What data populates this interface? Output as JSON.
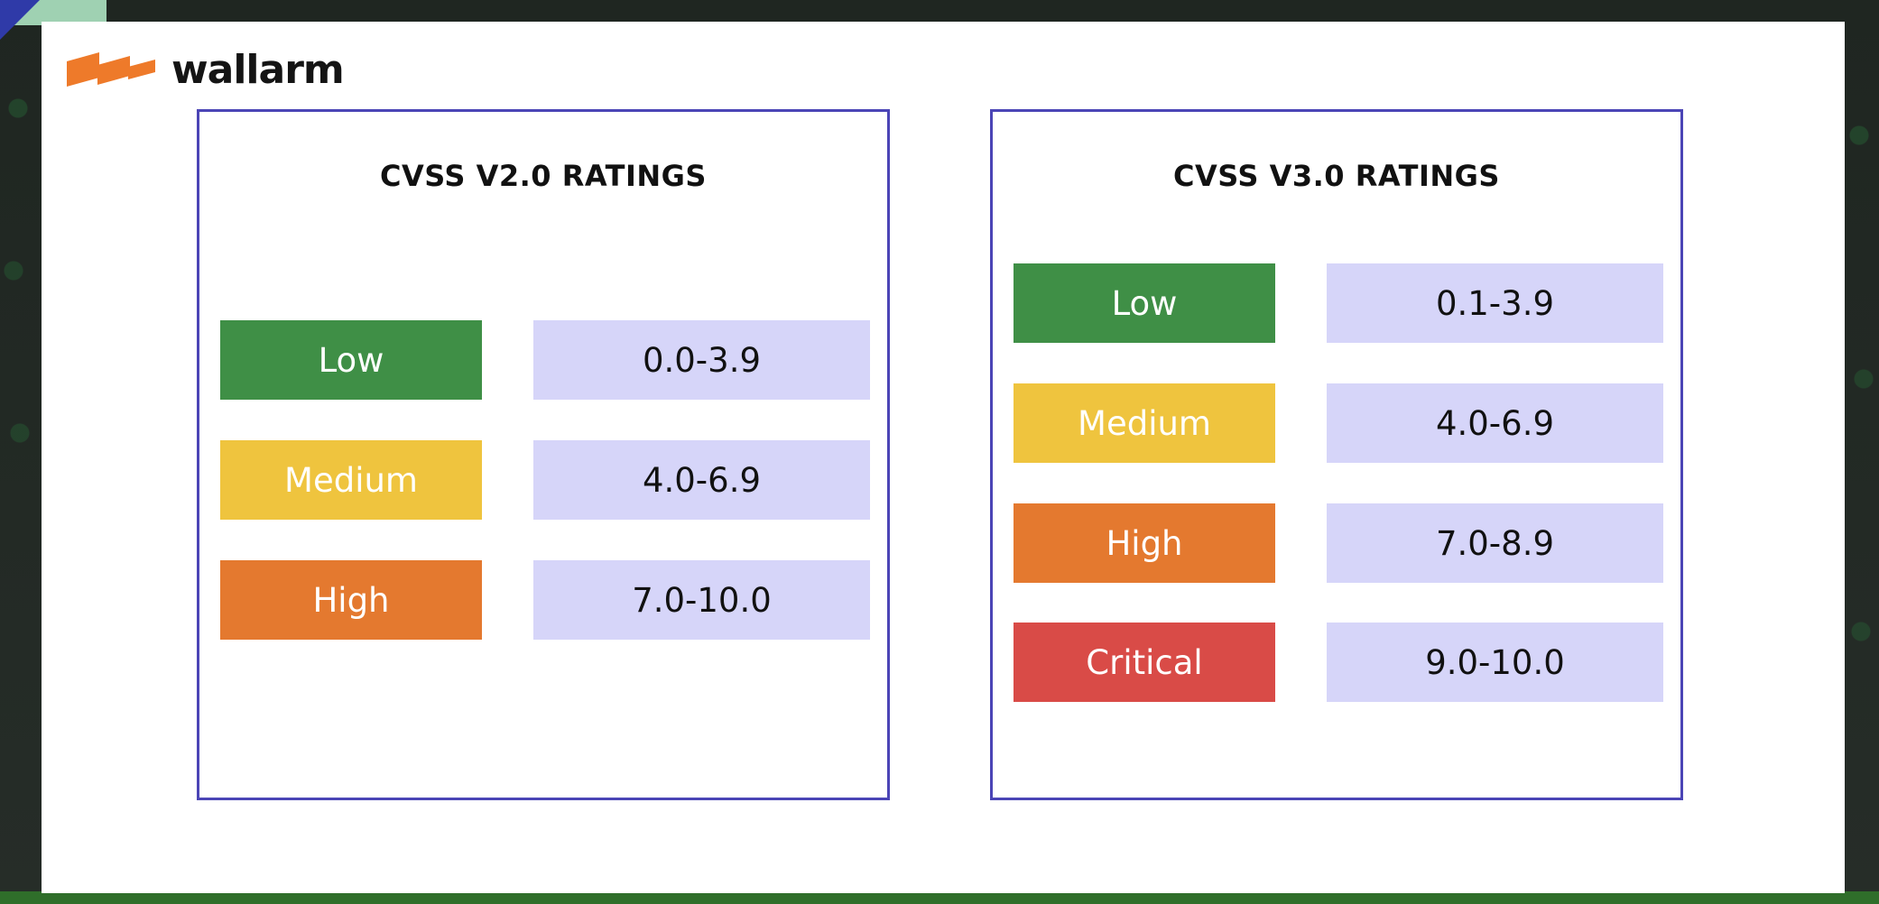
{
  "brand": {
    "name": "wallarm",
    "accent": "#ee7a2a"
  },
  "panels": [
    {
      "title": "CVSS V2.0 RATINGS",
      "ratings": [
        {
          "severity": "Low",
          "range": "0.0-3.9",
          "color": "#3f8f46"
        },
        {
          "severity": "Medium",
          "range": "4.0-6.9",
          "color": "#efc43e"
        },
        {
          "severity": "High",
          "range": "7.0-10.0",
          "color": "#e4792f"
        }
      ]
    },
    {
      "title": "CVSS V3.0 RATINGS",
      "ratings": [
        {
          "severity": "Low",
          "range": "0.1-3.9",
          "color": "#3f8f46"
        },
        {
          "severity": "Medium",
          "range": "4.0-6.9",
          "color": "#efc43e"
        },
        {
          "severity": "High",
          "range": "7.0-8.9",
          "color": "#e4792f"
        },
        {
          "severity": "Critical",
          "range": "9.0-10.0",
          "color": "#d94b47"
        }
      ]
    }
  ]
}
